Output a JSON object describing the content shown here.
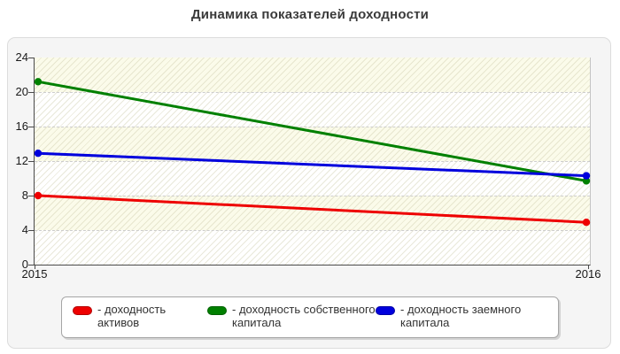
{
  "title": "Динамика показателей доходности",
  "chart_data": {
    "type": "line",
    "title": "Динамика показателей доходности",
    "categories": [
      "2015",
      "2016"
    ],
    "series": [
      {
        "name": "доходность активов",
        "color": "#ee0000",
        "values": [
          8.0,
          4.9
        ]
      },
      {
        "name": "доходность собственного капитала",
        "color": "#008000",
        "values": [
          21.2,
          9.7
        ]
      },
      {
        "name": "доходность заемного капитала",
        "color": "#0000dd",
        "values": [
          12.9,
          10.3
        ]
      }
    ],
    "ylim": [
      0,
      24
    ],
    "yticks": [
      0,
      4,
      8,
      12,
      16,
      20,
      24
    ],
    "grid": "horizontal-dashed",
    "legend_position": "bottom",
    "plot_background": "ivory-and-white bands with diagonal hatch"
  },
  "legend": {
    "items": [
      {
        "label": "- доходность активов",
        "color": "#ee0000"
      },
      {
        "label": "- доходность собственного капитала",
        "color": "#008000"
      },
      {
        "label": "- доходность заемного капитала",
        "color": "#0000dd"
      }
    ]
  },
  "colors": {
    "panel_bg": "#f5f5f5",
    "axis": "#4a4a4a",
    "gridline": "#cdcdcd",
    "title_text": "#3a3a3a"
  }
}
